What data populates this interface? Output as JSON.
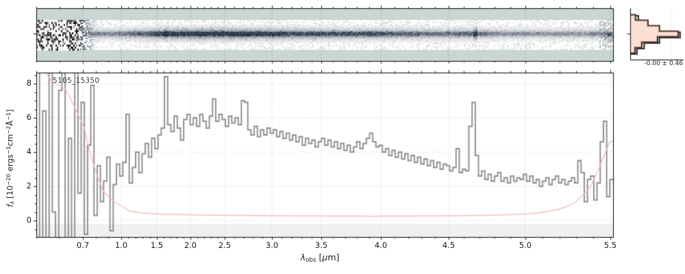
{
  "annotations": {
    "source_label": "5105_15350",
    "hist_label": "-0.00 ± 0.46"
  },
  "axes": {
    "xlabel_segments": [
      {
        "t": "λ",
        "s": "i"
      },
      {
        "t": "obs",
        "s": "sub"
      },
      {
        "t": " ["
      },
      {
        "t": "μ",
        "s": "i"
      },
      {
        "t": "m]",
        "s": ""
      }
    ],
    "ylabel_segments": [
      {
        "t": "f",
        "s": "i"
      },
      {
        "t": "λ",
        "s": "subi"
      },
      {
        "t": " [10",
        "s": ""
      },
      {
        "t": "−20",
        "s": "sup"
      },
      {
        "t": " ergs",
        "s": ""
      },
      {
        "t": "−1",
        "s": "sup"
      },
      {
        "t": "cm",
        "s": ""
      },
      {
        "t": "−2",
        "s": "sup"
      },
      {
        "t": "Å",
        "s": ""
      },
      {
        "t": "−1",
        "s": "sup"
      },
      {
        "t": "]",
        "s": ""
      }
    ]
  },
  "colors": {
    "background": "#ffffff",
    "flux_line": "#8c8c8c",
    "error_line": "#f7bcbc",
    "hist_fill": "#fbdfd2",
    "hist_edge": "#4f3227",
    "hist_edge_secondary": "#2e2e2e",
    "spec2d_bg": "#c9d6d2",
    "spec2d_trace_dark": "#1f2c40",
    "below_zero_band": "#f0f0f0",
    "grid": "#c4c4c4",
    "spine": "#000000",
    "text": "#1a1a1a"
  },
  "chart_data": [
    {
      "id": "spec2d",
      "type": "heatmap",
      "description": "2D spectrum cutout strip, dark trace on teal background, noisy below 0.72um and at red end",
      "shares_x_with": "spec1d",
      "noise_region_end_frac": 0.075,
      "noise_transition_end_frac": 0.105,
      "right_noise_start_frac": 0.974,
      "emission_line_lambdas": [
        1.62,
        4.67
      ],
      "grid": "dotted vertical at x majors, dotted horizontal at trace center"
    },
    {
      "id": "spec1d",
      "type": "line",
      "annotation": "5105_15350",
      "xlabel": "lambda_obs [um]",
      "ylabel": "f_lambda [10^-20 ergs^-1 cm^-2 A^-1]",
      "x_scale": "nirspec-prism-pixel",
      "x_control_points": {
        "lambda": [
          0.5,
          0.7,
          1.0,
          1.5,
          2.0,
          2.5,
          3.0,
          3.5,
          4.0,
          4.5,
          5.0,
          5.5,
          5.52
        ],
        "frac": [
          0,
          0.0808,
          0.1473,
          0.209,
          0.2672,
          0.3266,
          0.4086,
          0.4941,
          0.5974,
          0.715,
          0.8479,
          0.9952,
          1.0
        ]
      },
      "xlim": [
        0.5,
        5.52
      ],
      "ylim": [
        -0.96,
        8.64
      ],
      "x_major_ticks": [
        0.7,
        1.0,
        1.5,
        2.0,
        2.5,
        3.0,
        3.5,
        4.0,
        4.5,
        5.0,
        5.5
      ],
      "x_major_labels": [
        "0.7",
        "1.0",
        "1.5",
        "2.0",
        "2.5",
        "3.0",
        "3.5",
        "4.0",
        "4.5",
        "5.0",
        "5.5"
      ],
      "x_minor_step": 0.1,
      "y_major_ticks": [
        0,
        2,
        4,
        6,
        8
      ],
      "y_major_labels": [
        "0",
        "2",
        "4",
        "6",
        "8"
      ],
      "y_minor_step": 0.5,
      "grid": "dotted at majors both axes",
      "below_zero_band_top": -0.2,
      "series": [
        {
          "name": "flux",
          "style": "step",
          "values": [
            9.5,
            -1.8,
            6.4,
            -2.2,
            9.0,
            0.5,
            -1.6,
            7.6,
            9.3,
            -1.2,
            4.8,
            -2.0,
            9.1,
            1.6,
            6.9,
            -0.8,
            4.4,
            7.9,
            0.3,
            3.2,
            1.1,
            2.3,
            3.7,
            -0.6,
            2.1,
            3.3,
            2.6,
            3.4,
            6.2,
            2.2,
            3.1,
            4.0,
            2.8,
            3.9,
            4.5,
            3.7,
            4.8,
            4.2,
            5.0,
            5.4,
            8.4,
            5.6,
            5.2,
            6.1,
            5.4,
            4.7,
            5.9,
            6.2,
            5.6,
            6.0,
            5.5,
            6.2,
            5.8,
            5.4,
            6.1,
            7.1,
            5.8,
            6.2,
            5.9,
            5.5,
            6.1,
            5.7,
            6.0,
            5.6,
            7.0,
            6.9,
            5.3,
            5.0,
            5.5,
            4.9,
            5.3,
            5.0,
            5.4,
            5.1,
            5.3,
            4.9,
            5.2,
            4.8,
            5.1,
            4.7,
            5.0,
            4.6,
            4.9,
            4.4,
            4.8,
            4.5,
            4.7,
            4.3,
            4.6,
            4.8,
            4.4,
            4.7,
            4.3,
            4.6,
            4.2,
            4.5,
            4.1,
            4.4,
            4.0,
            4.3,
            4.6,
            4.2,
            4.5,
            4.8,
            5.1,
            4.6,
            4.3,
            4.4,
            4.0,
            4.2,
            3.8,
            4.1,
            3.7,
            4.0,
            3.6,
            3.9,
            3.5,
            3.8,
            3.4,
            3.7,
            3.3,
            3.6,
            3.2,
            3.5,
            3.1,
            3.4,
            3.0,
            3.3,
            3.2,
            2.9,
            3.1,
            4.2,
            2.8,
            3.0,
            2.9,
            5.5,
            6.9,
            3.8,
            2.6,
            2.9,
            2.4,
            2.7,
            2.3,
            2.6,
            2.8,
            2.3,
            2.5,
            2.2,
            2.6,
            2.3,
            2.5,
            2.4,
            2.7,
            2.3,
            2.6,
            2.2,
            2.4,
            2.0,
            2.3,
            2.5,
            2.1,
            2.4,
            2.6,
            2.2,
            2.4,
            2.1,
            2.3,
            2.5,
            2.2,
            3.5,
            2.8,
            1.1,
            2.4,
            2.6,
            1.2,
            2.2,
            4.6,
            5.8,
            1.4,
            2.4
          ]
        },
        {
          "name": "error",
          "style": "line",
          "values": [
            9.0,
            8.6,
            8.1,
            7.9,
            7.7,
            7.0,
            6.2,
            5.4,
            3.8,
            2.6,
            1.7,
            1.3,
            1.0,
            0.8,
            0.55,
            0.5,
            0.44,
            0.42,
            0.39,
            0.37,
            0.36,
            0.35,
            0.35,
            0.34,
            0.33,
            0.33,
            0.32,
            0.32,
            0.31,
            0.31,
            0.3,
            0.3,
            0.3,
            0.29,
            0.29,
            0.29,
            0.28,
            0.28,
            0.28,
            0.28,
            0.27,
            0.27,
            0.27,
            0.27,
            0.27,
            0.26,
            0.26,
            0.26,
            0.26,
            0.26,
            0.26,
            0.26,
            0.25,
            0.26,
            0.26,
            0.26,
            0.26,
            0.26,
            0.26,
            0.27,
            0.27,
            0.27,
            0.27,
            0.28,
            0.28,
            0.28,
            0.29,
            0.29,
            0.3,
            0.3,
            0.31,
            0.32,
            0.33,
            0.34,
            0.35,
            0.37,
            0.39,
            0.42,
            0.46,
            0.52,
            0.58,
            0.66,
            0.78,
            0.95,
            1.2,
            1.55,
            2.0,
            2.8,
            3.7,
            4.6
          ]
        }
      ]
    },
    {
      "id": "pixel-histogram",
      "type": "histogram",
      "orientation": "horizontal",
      "annotation": "-0.00 ± 0.46",
      "mean": -0.0,
      "sigma": 0.46,
      "bin_index": [
        -3,
        -2,
        -1,
        0,
        1,
        2,
        3
      ],
      "counts_rel_filled": [
        0.11,
        0.37,
        0.61,
        1.0,
        0.57,
        0.24,
        0.1
      ],
      "counts_rel_secondary": [
        0.17,
        0.34,
        0.57,
        1.04,
        0.61,
        0.29,
        0.14
      ],
      "gridline_x_rel": [
        0.14,
        0.77
      ],
      "grid": "dotted vertical pair, dotted horizontal at center"
    }
  ]
}
